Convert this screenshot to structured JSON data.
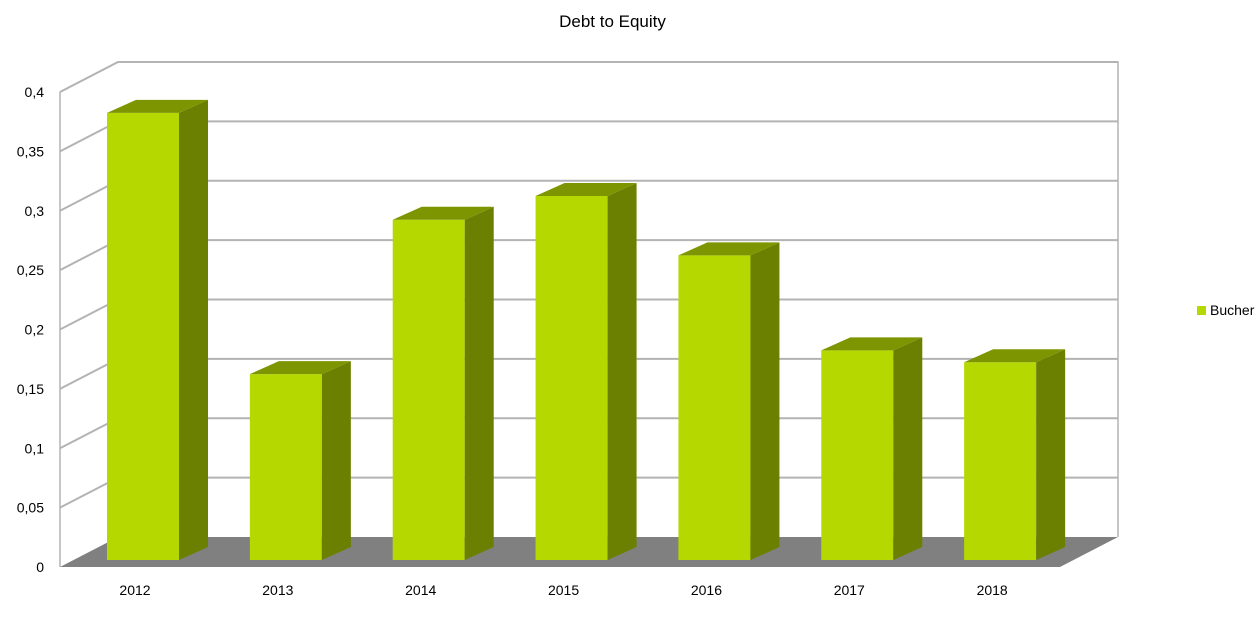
{
  "chart_data": {
    "type": "bar",
    "title": "Debt to Equity",
    "categories": [
      "2012",
      "2013",
      "2014",
      "2015",
      "2016",
      "2017",
      "2018"
    ],
    "series": [
      {
        "name": "Bucher",
        "values": [
          0.39,
          0.17,
          0.3,
          0.32,
          0.27,
          0.19,
          0.18
        ]
      }
    ],
    "y_ticks": [
      "0",
      "0,05",
      "0,1",
      "0,15",
      "0,2",
      "0,25",
      "0,3",
      "0,35",
      "0,4"
    ],
    "ylim": [
      0,
      0.4
    ],
    "grid": true,
    "legend_position": "right",
    "style": "3d",
    "colors": {
      "bar_front": "#b5d800",
      "bar_side": "#6b8000",
      "bar_top": "#7d9500",
      "floor": "#808080",
      "grid": "#b3b3b3"
    }
  }
}
